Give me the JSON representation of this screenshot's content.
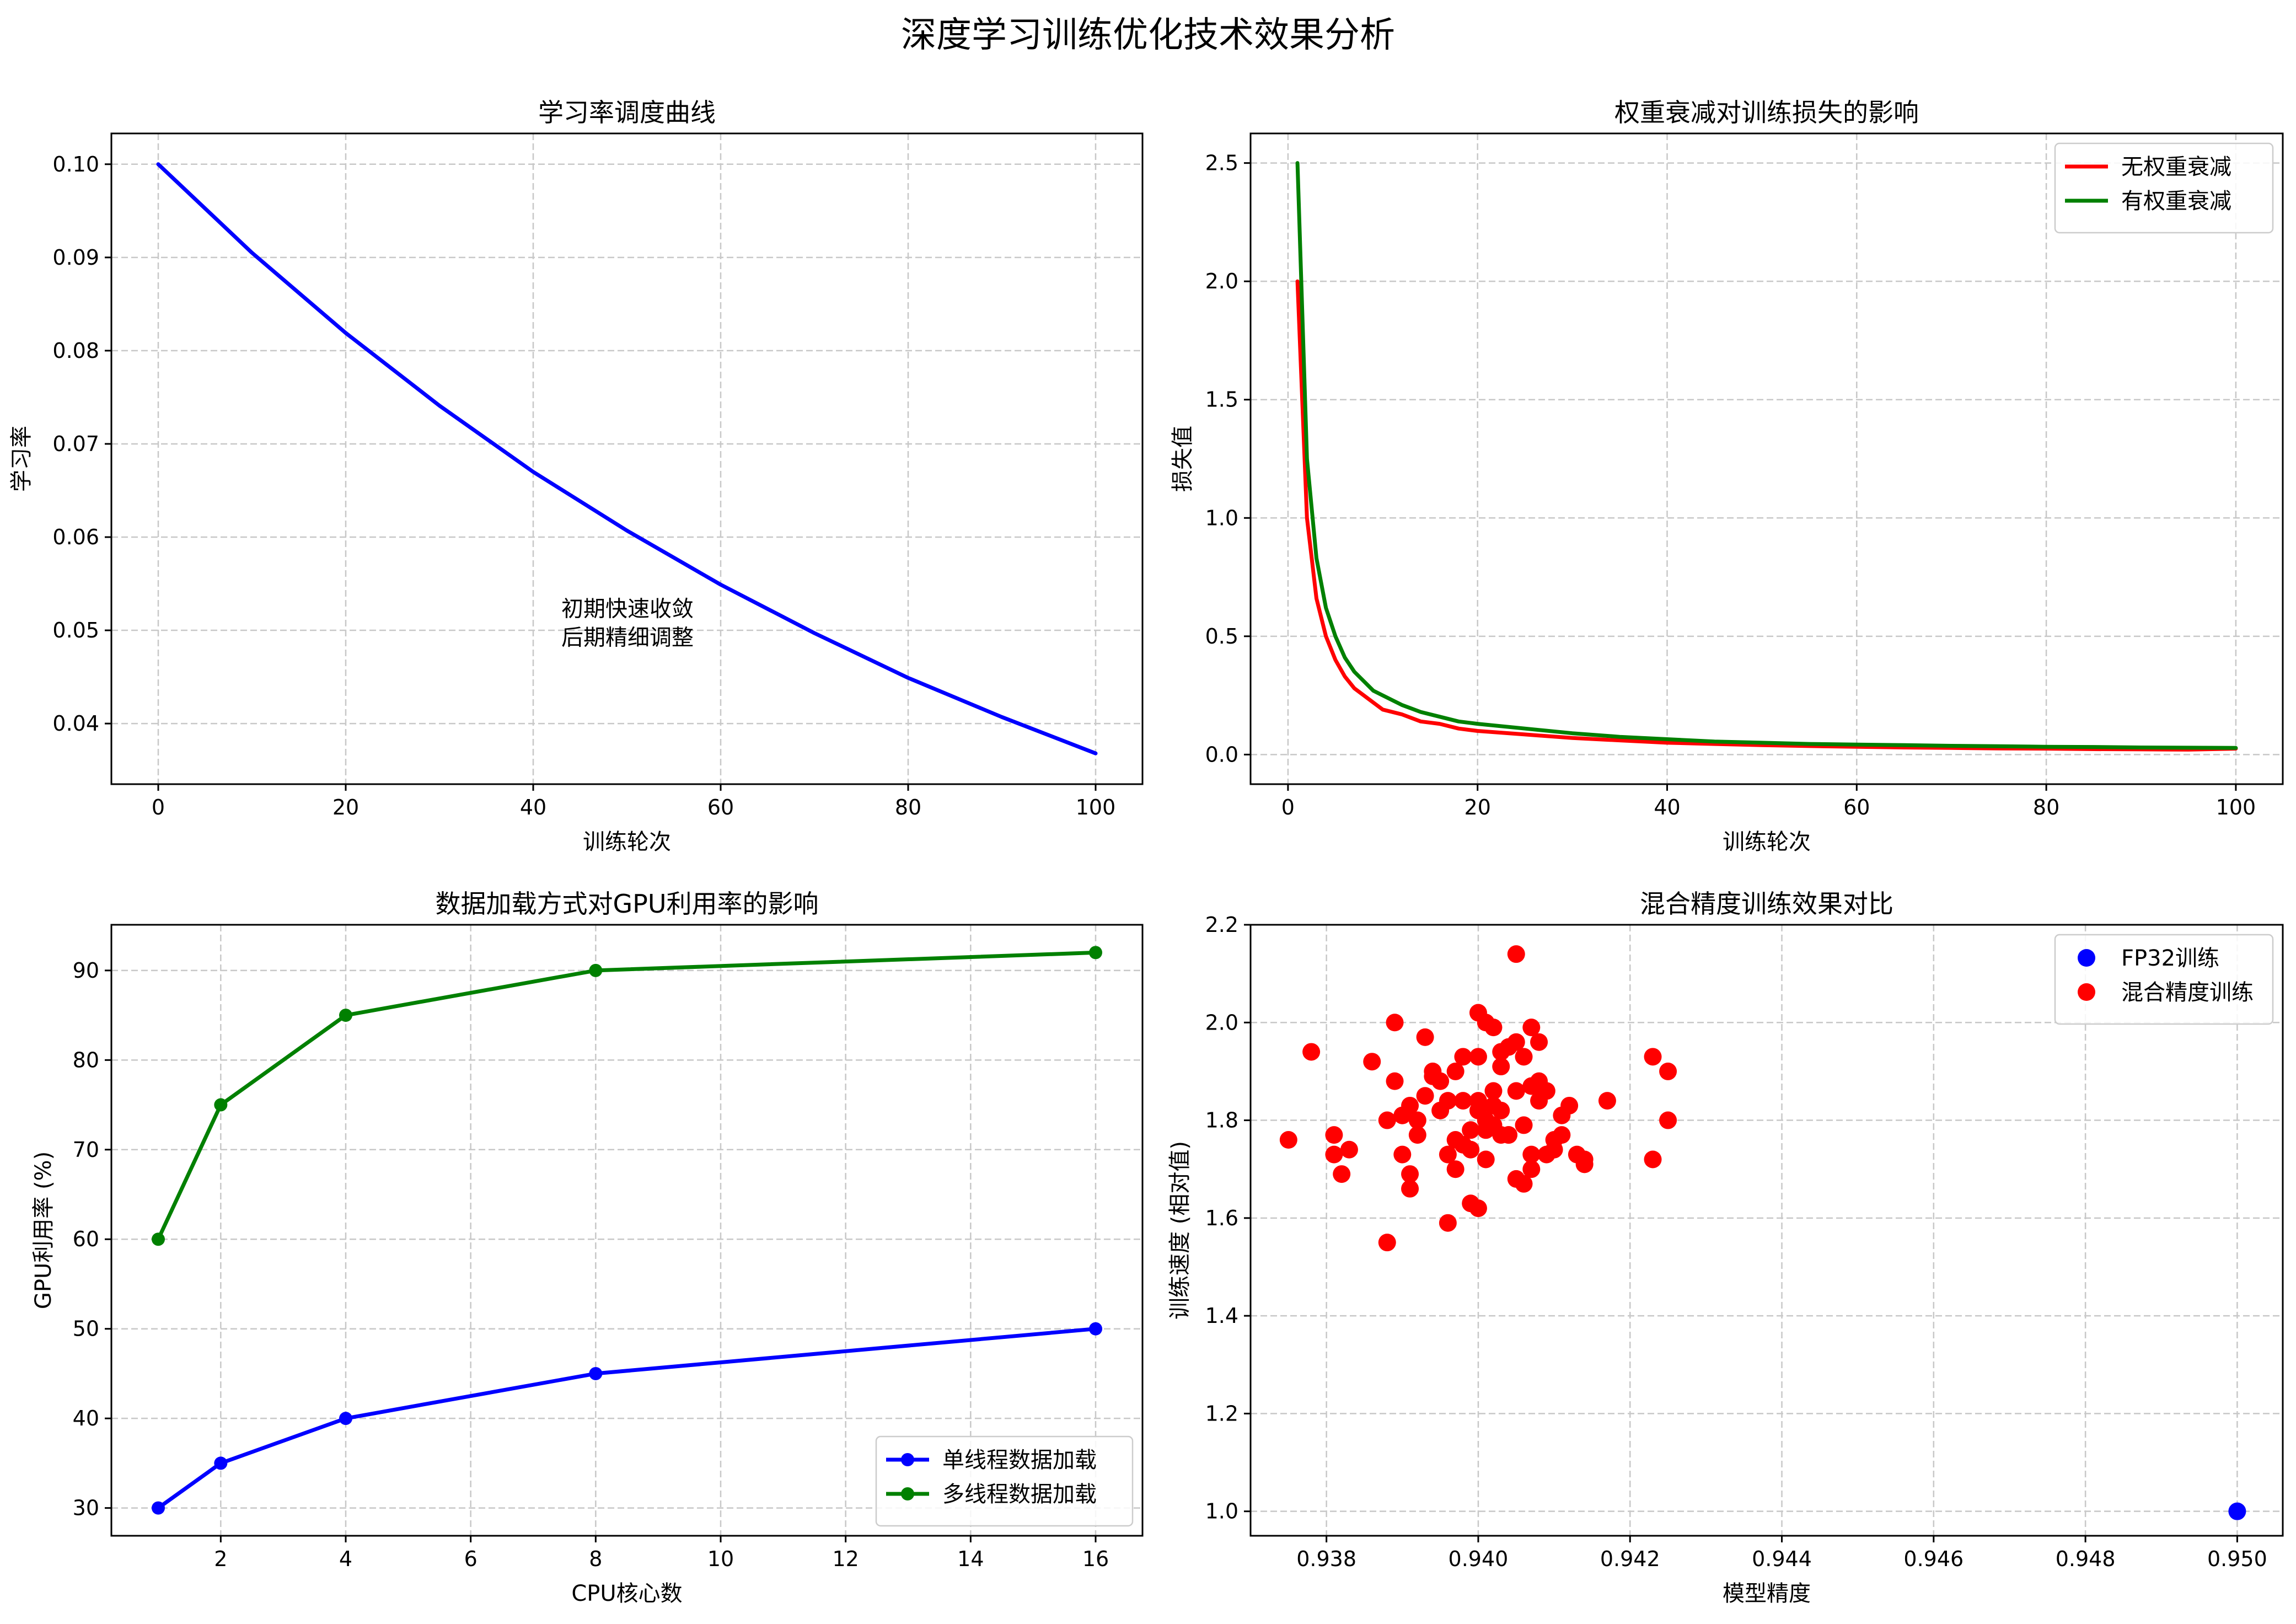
{
  "figure": {
    "suptitle": "深度学习训练优化技术效果分析"
  },
  "chart_data": [
    {
      "type": "line",
      "title": "学习率调度曲线",
      "xlabel": "训练轮次",
      "ylabel": "学习率",
      "xlim": [
        -5,
        105
      ],
      "ylim": [
        0.0335,
        0.1033
      ],
      "xticks": [
        0,
        20,
        40,
        60,
        80,
        100
      ],
      "yticks": [
        0.04,
        0.05,
        0.06,
        0.07,
        0.08,
        0.09,
        0.1
      ],
      "ytick_labels": [
        "0.04",
        "0.05",
        "0.06",
        "0.07",
        "0.08",
        "0.09",
        "0.10"
      ],
      "grid": true,
      "annotation": [
        "初期快速收敛",
        "后期精细调整"
      ],
      "annotation_at": [
        43,
        0.0515
      ],
      "series": [
        {
          "color": "#0000ff",
          "x": [
            0,
            10,
            20,
            30,
            40,
            50,
            60,
            70,
            80,
            90,
            100
          ],
          "y": [
            0.1,
            0.0905,
            0.0819,
            0.0741,
            0.067,
            0.0607,
            0.0549,
            0.0497,
            0.0449,
            0.0407,
            0.0368
          ]
        }
      ]
    },
    {
      "type": "line",
      "title": "权重衰减对训练损失的影响",
      "xlabel": "训练轮次",
      "ylabel": "损失值",
      "xlim": [
        -3.95,
        104.95
      ],
      "ylim": [
        -0.125,
        2.625
      ],
      "xticks": [
        0,
        20,
        40,
        60,
        80,
        100
      ],
      "yticks": [
        0.0,
        0.5,
        1.0,
        1.5,
        2.0,
        2.5
      ],
      "ytick_labels": [
        "0.0",
        "0.5",
        "1.0",
        "1.5",
        "2.0",
        "2.5"
      ],
      "grid": true,
      "legend": "top-right",
      "series": [
        {
          "name": "无权重衰减",
          "color": "#ff0000",
          "x": [
            1,
            2,
            3,
            4,
            5,
            6,
            7,
            8,
            9,
            10,
            12,
            14,
            16,
            18,
            20,
            25,
            30,
            35,
            40,
            45,
            50,
            55,
            60,
            65,
            70,
            75,
            80,
            85,
            90,
            95,
            100
          ],
          "y": [
            2.0,
            1.0,
            0.66,
            0.5,
            0.4,
            0.33,
            0.28,
            0.25,
            0.22,
            0.19,
            0.17,
            0.14,
            0.13,
            0.11,
            0.1,
            0.085,
            0.07,
            0.06,
            0.05,
            0.045,
            0.04,
            0.036,
            0.033,
            0.03,
            0.028,
            0.026,
            0.025,
            0.023,
            0.022,
            0.021,
            0.025
          ]
        },
        {
          "name": "有权重衰减",
          "color": "#008000",
          "x": [
            1,
            2,
            3,
            4,
            5,
            6,
            7,
            8,
            9,
            10,
            12,
            14,
            16,
            18,
            20,
            25,
            30,
            35,
            40,
            45,
            50,
            55,
            60,
            65,
            70,
            75,
            80,
            85,
            90,
            95,
            100
          ],
          "y": [
            2.5,
            1.25,
            0.83,
            0.62,
            0.5,
            0.41,
            0.35,
            0.31,
            0.27,
            0.25,
            0.21,
            0.18,
            0.16,
            0.14,
            0.13,
            0.11,
            0.09,
            0.075,
            0.065,
            0.055,
            0.05,
            0.045,
            0.042,
            0.04,
            0.037,
            0.035,
            0.033,
            0.032,
            0.03,
            0.029,
            0.028
          ]
        }
      ]
    },
    {
      "type": "line",
      "title": "数据加载方式对GPU利用率的影响",
      "xlabel": "CPU核心数",
      "ylabel": "GPU利用率 (%)",
      "xlim": [
        0.25,
        16.75
      ],
      "ylim": [
        26.9,
        95.1
      ],
      "xticks": [
        2,
        4,
        6,
        8,
        10,
        12,
        14,
        16
      ],
      "yticks": [
        30,
        40,
        50,
        60,
        70,
        80,
        90
      ],
      "ytick_labels": [
        "30",
        "40",
        "50",
        "60",
        "70",
        "80",
        "90"
      ],
      "grid": true,
      "legend": "bottom-right",
      "series": [
        {
          "name": "单线程数据加载",
          "color": "#0000ff",
          "x": [
            1,
            2,
            4,
            8,
            16
          ],
          "y": [
            30,
            35,
            40,
            45,
            50
          ]
        },
        {
          "name": "多线程数据加载",
          "color": "#008000",
          "x": [
            1,
            2,
            4,
            8,
            16
          ],
          "y": [
            60,
            75,
            85,
            90,
            92
          ]
        }
      ]
    },
    {
      "type": "scatter",
      "title": "混合精度训练效果对比",
      "xlabel": "模型精度",
      "ylabel": "训练速度 (相对值)",
      "xlim": [
        0.937,
        0.9506
      ],
      "ylim": [
        0.95,
        2.2
      ],
      "xticks": [
        0.938,
        0.94,
        0.942,
        0.944,
        0.946,
        0.948,
        0.95
      ],
      "xtick_labels": [
        "0.938",
        "0.940",
        "0.942",
        "0.944",
        "0.946",
        "0.948",
        "0.950"
      ],
      "yticks": [
        1.0,
        1.2,
        1.4,
        1.6,
        1.8,
        2.0,
        2.2
      ],
      "ytick_labels": [
        "1.0",
        "1.2",
        "1.4",
        "1.6",
        "1.8",
        "2.0",
        "2.2"
      ],
      "grid": true,
      "legend": "top-right",
      "series": [
        {
          "name": "FP32训练",
          "color": "#0000ff",
          "x": [
            0.95
          ],
          "y": [
            1.0
          ]
        },
        {
          "name": "混合精度训练",
          "color": "#ff0000",
          "x": [
            0.9375,
            0.9378,
            0.9381,
            0.9381,
            0.9382,
            0.9383,
            0.9386,
            0.9388,
            0.9388,
            0.9389,
            0.9389,
            0.939,
            0.939,
            0.9391,
            0.9391,
            0.9391,
            0.9392,
            0.9392,
            0.9393,
            0.9393,
            0.9394,
            0.9394,
            0.9395,
            0.9395,
            0.9396,
            0.9396,
            0.9396,
            0.9397,
            0.9397,
            0.9397,
            0.9398,
            0.9398,
            0.9398,
            0.9399,
            0.9399,
            0.9399,
            0.94,
            0.94,
            0.94,
            0.94,
            0.94,
            0.9401,
            0.9401,
            0.9401,
            0.9401,
            0.9402,
            0.9402,
            0.9402,
            0.9402,
            0.9403,
            0.9403,
            0.9403,
            0.9403,
            0.9404,
            0.9404,
            0.9404,
            0.9405,
            0.9405,
            0.9405,
            0.9405,
            0.9406,
            0.9406,
            0.9406,
            0.9407,
            0.9407,
            0.9407,
            0.9407,
            0.9408,
            0.9408,
            0.9408,
            0.9409,
            0.9409,
            0.941,
            0.941,
            0.9411,
            0.9411,
            0.9412,
            0.9413,
            0.9414,
            0.9414,
            0.9417,
            0.9423,
            0.9423,
            0.9425,
            0.9425
          ],
          "y": [
            1.76,
            1.94,
            1.77,
            1.73,
            1.69,
            1.74,
            1.92,
            1.55,
            1.8,
            1.88,
            2.0,
            1.73,
            1.81,
            1.69,
            1.66,
            1.83,
            1.77,
            1.8,
            1.85,
            1.97,
            1.89,
            1.9,
            1.82,
            1.88,
            1.84,
            1.59,
            1.73,
            1.7,
            1.76,
            1.9,
            1.75,
            1.84,
            1.93,
            1.74,
            1.63,
            1.78,
            2.02,
            1.82,
            1.93,
            1.84,
            1.62,
            1.78,
            1.72,
            1.8,
            2.0,
            1.83,
            1.99,
            1.79,
            1.86,
            1.91,
            1.77,
            1.82,
            1.94,
            1.77,
            1.95,
            1.77,
            2.14,
            1.86,
            1.96,
            1.68,
            1.93,
            1.79,
            1.67,
            1.73,
            1.87,
            1.7,
            1.99,
            1.84,
            1.96,
            1.88,
            1.73,
            1.86,
            1.76,
            1.74,
            1.81,
            1.77,
            1.83,
            1.73,
            1.72,
            1.71,
            1.84,
            1.72,
            1.93,
            1.9,
            1.8
          ]
        }
      ]
    }
  ]
}
